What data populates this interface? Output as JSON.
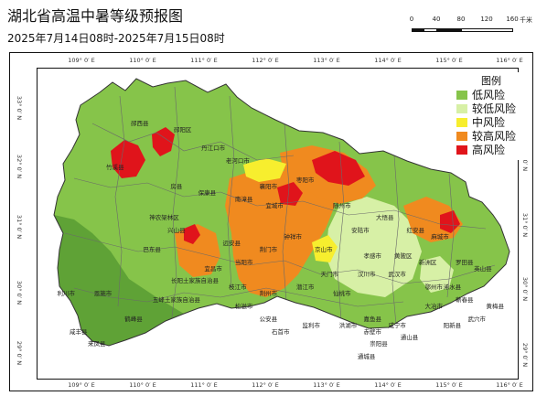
{
  "title": "湖北省高温中暑等级预报图",
  "subtitle": "2025年7月14日08时-2025年7月15日08时",
  "scale_bar": {
    "labels": [
      "0",
      "40",
      "80",
      "120",
      "160"
    ],
    "unit": "千米"
  },
  "axes": {
    "longitude_ticks": [
      "109° 0′ E",
      "110° 0′ E",
      "111° 0′ E",
      "112° 0′ E",
      "113° 0′ E",
      "114° 0′ E",
      "115° 0′ E",
      "116° 0′ E"
    ],
    "latitude_ticks": [
      "33° 0′ N",
      "32° 0′ N",
      "31° 0′ N",
      "30° 0′ N",
      "29° 0′ N"
    ]
  },
  "legend": {
    "title": "图例",
    "items": [
      {
        "label": "低风险",
        "color": "#86c44a"
      },
      {
        "label": "较低风险",
        "color": "#d7f0a6"
      },
      {
        "label": "中风险",
        "color": "#f7ee2e"
      },
      {
        "label": "较高风险",
        "color": "#f08a1f"
      },
      {
        "label": "高风险",
        "color": "#e0141b"
      }
    ]
  },
  "colors": {
    "low_risk_dark": "#5fa236",
    "boundary": "#6a6a6a"
  },
  "places": [
    {
      "name": "郧西县",
      "lon": 110.1,
      "lat": 33.0
    },
    {
      "name": "郧阳区",
      "lon": 110.8,
      "lat": 32.9
    },
    {
      "name": "丹江口市",
      "lon": 111.3,
      "lat": 32.6
    },
    {
      "name": "老河口市",
      "lon": 111.7,
      "lat": 32.4
    },
    {
      "name": "随州市",
      "lon": 113.4,
      "lat": 31.7
    },
    {
      "name": "襄阳市",
      "lon": 112.2,
      "lat": 32.0
    },
    {
      "name": "竹溪县",
      "lon": 109.7,
      "lat": 32.3
    },
    {
      "name": "房县",
      "lon": 110.7,
      "lat": 32.0
    },
    {
      "name": "保康县",
      "lon": 111.2,
      "lat": 31.9
    },
    {
      "name": "南漳县",
      "lon": 111.8,
      "lat": 31.8
    },
    {
      "name": "宜城市",
      "lon": 112.3,
      "lat": 31.7
    },
    {
      "name": "枣阳市",
      "lon": 112.8,
      "lat": 32.1
    },
    {
      "name": "神农架林区",
      "lon": 110.5,
      "lat": 31.5
    },
    {
      "name": "兴山县",
      "lon": 110.7,
      "lat": 31.3
    },
    {
      "name": "远安县",
      "lon": 111.6,
      "lat": 31.1
    },
    {
      "name": "钟祥市",
      "lon": 112.6,
      "lat": 31.2
    },
    {
      "name": "京山市",
      "lon": 113.1,
      "lat": 31.0
    },
    {
      "name": "安陆市",
      "lon": 113.7,
      "lat": 31.3
    },
    {
      "name": "大悟县",
      "lon": 114.1,
      "lat": 31.5
    },
    {
      "name": "红安县",
      "lon": 114.6,
      "lat": 31.3
    },
    {
      "name": "麻城市",
      "lon": 115.0,
      "lat": 31.2
    },
    {
      "name": "巴东县",
      "lon": 110.3,
      "lat": 31.0
    },
    {
      "name": "宜昌市",
      "lon": 111.3,
      "lat": 30.7
    },
    {
      "name": "当阳市",
      "lon": 111.8,
      "lat": 30.8
    },
    {
      "name": "荆门市",
      "lon": 112.2,
      "lat": 31.0
    },
    {
      "name": "天门市",
      "lon": 113.2,
      "lat": 30.6
    },
    {
      "name": "孝感市",
      "lon": 113.9,
      "lat": 30.9
    },
    {
      "name": "黄陂区",
      "lon": 114.4,
      "lat": 30.9
    },
    {
      "name": "新洲区",
      "lon": 114.8,
      "lat": 30.8
    },
    {
      "name": "罗田县",
      "lon": 115.4,
      "lat": 30.8
    },
    {
      "name": "英山县",
      "lon": 115.7,
      "lat": 30.7
    },
    {
      "name": "恩施市",
      "lon": 109.5,
      "lat": 30.3
    },
    {
      "name": "长阳土家族自治县",
      "lon": 111.0,
      "lat": 30.5
    },
    {
      "name": "枝江市",
      "lon": 111.7,
      "lat": 30.4
    },
    {
      "name": "荆州市",
      "lon": 112.2,
      "lat": 30.3
    },
    {
      "name": "潜江市",
      "lon": 112.8,
      "lat": 30.4
    },
    {
      "name": "仙桃市",
      "lon": 113.4,
      "lat": 30.3
    },
    {
      "name": "汉川市",
      "lon": 113.8,
      "lat": 30.6
    },
    {
      "name": "武汉市",
      "lon": 114.3,
      "lat": 30.6
    },
    {
      "name": "鄂州市",
      "lon": 114.9,
      "lat": 30.4
    },
    {
      "name": "浠水县",
      "lon": 115.2,
      "lat": 30.4
    },
    {
      "name": "蕲春县",
      "lon": 115.4,
      "lat": 30.2
    },
    {
      "name": "利川市",
      "lon": 108.9,
      "lat": 30.3
    },
    {
      "name": "鹤峰县",
      "lon": 110.0,
      "lat": 29.9
    },
    {
      "name": "五峰土家族自治县",
      "lon": 110.7,
      "lat": 30.2
    },
    {
      "name": "松滋市",
      "lon": 111.8,
      "lat": 30.1
    },
    {
      "name": "公安县",
      "lon": 112.2,
      "lat": 29.9
    },
    {
      "name": "石首市",
      "lon": 112.4,
      "lat": 29.7
    },
    {
      "name": "监利市",
      "lon": 112.9,
      "lat": 29.8
    },
    {
      "name": "洪湖市",
      "lon": 113.5,
      "lat": 29.8
    },
    {
      "name": "嘉鱼县",
      "lon": 113.9,
      "lat": 29.9
    },
    {
      "name": "咸宁市",
      "lon": 114.3,
      "lat": 29.8
    },
    {
      "name": "大冶市",
      "lon": 114.9,
      "lat": 30.1
    },
    {
      "name": "阳新县",
      "lon": 115.2,
      "lat": 29.8
    },
    {
      "name": "武穴市",
      "lon": 115.6,
      "lat": 29.9
    },
    {
      "name": "黄梅县",
      "lon": 115.9,
      "lat": 30.1
    },
    {
      "name": "咸丰县",
      "lon": 109.1,
      "lat": 29.7
    },
    {
      "name": "来凤县",
      "lon": 109.4,
      "lat": 29.5
    },
    {
      "name": "赤壁市",
      "lon": 113.9,
      "lat": 29.7
    },
    {
      "name": "崇阳县",
      "lon": 114.0,
      "lat": 29.5
    },
    {
      "name": "通城县",
      "lon": 113.8,
      "lat": 29.3
    },
    {
      "name": "通山县",
      "lon": 114.5,
      "lat": 29.6
    }
  ]
}
